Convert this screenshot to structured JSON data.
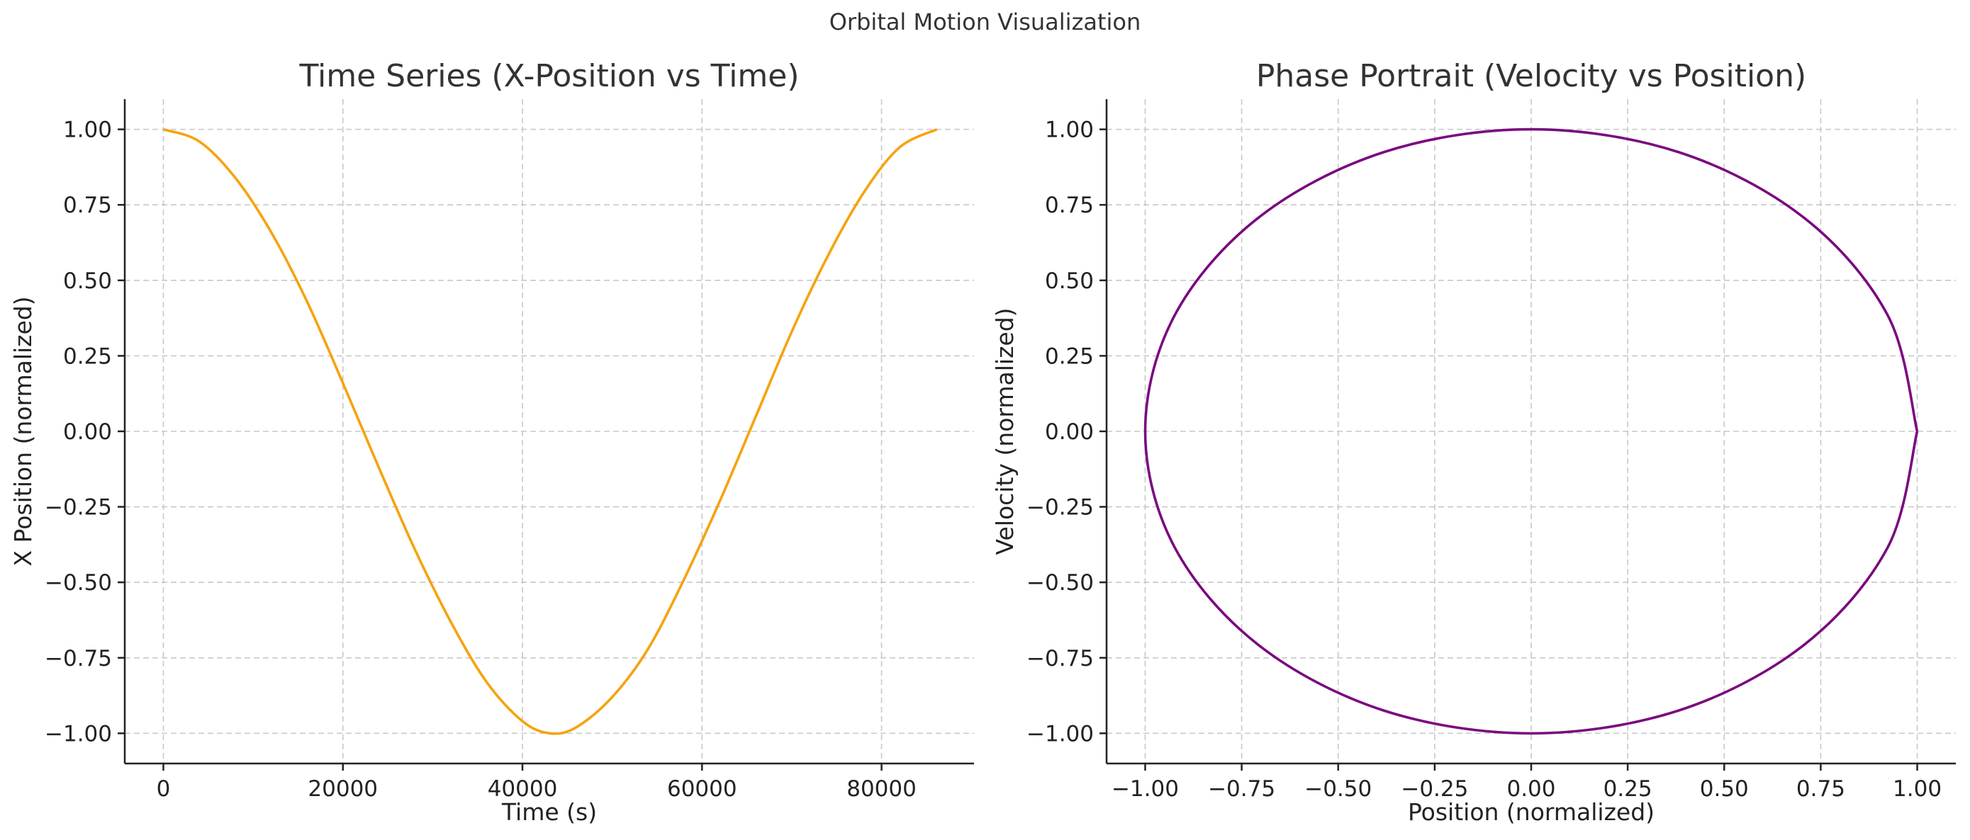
{
  "figure": {
    "suptitle": "Orbital Motion Visualization"
  },
  "chart_data": [
    {
      "type": "line",
      "title": "Time Series (X-Position vs Time)",
      "xlabel": "Time (s)",
      "ylabel": "X Position (normalized)",
      "xlim": [
        -4300,
        90300
      ],
      "ylim": [
        -1.1,
        1.1
      ],
      "xticks": [
        0,
        20000,
        40000,
        60000,
        80000
      ],
      "xtick_labels": [
        "0",
        "20000",
        "40000",
        "60000",
        "80000"
      ],
      "yticks": [
        1.0,
        0.75,
        0.5,
        0.25,
        0.0,
        -0.25,
        -0.5,
        -0.75,
        -1.0
      ],
      "ytick_labels": [
        "1.00",
        "0.75",
        "0.50",
        "0.25",
        "0.00",
        "−0.25",
        "−0.50",
        "−0.75",
        "−1.00"
      ],
      "grid": true,
      "series": [
        {
          "color": "#f5a30f",
          "x": [
            0,
            4000,
            8000,
            12000,
            16000,
            20000,
            24000,
            28000,
            32000,
            36000,
            40000,
            43080,
            46000,
            50000,
            54000,
            58000,
            62000,
            66000,
            70000,
            74000,
            78000,
            82000,
            86160
          ],
          "y": [
            1.0,
            0.96,
            0.84,
            0.66,
            0.43,
            0.16,
            -0.12,
            -0.39,
            -0.63,
            -0.83,
            -0.96,
            -1.0,
            -0.98,
            -0.88,
            -0.72,
            -0.49,
            -0.23,
            0.05,
            0.33,
            0.58,
            0.79,
            0.94,
            1.0
          ]
        }
      ]
    },
    {
      "type": "line",
      "title": "Phase Portrait (Velocity vs Position)",
      "xlabel": "Position (normalized)",
      "ylabel": "Velocity (normalized)",
      "xlim": [
        -1.1,
        1.1
      ],
      "ylim": [
        -1.1,
        1.1
      ],
      "xticks": [
        -1.0,
        -0.75,
        -0.5,
        -0.25,
        0.0,
        0.25,
        0.5,
        0.75,
        1.0
      ],
      "xtick_labels": [
        "−1.00",
        "−0.75",
        "−0.50",
        "−0.25",
        "0.00",
        "0.25",
        "0.50",
        "0.75",
        "1.00"
      ],
      "yticks": [
        1.0,
        0.75,
        0.5,
        0.25,
        0.0,
        -0.25,
        -0.5,
        -0.75,
        -1.0
      ],
      "ytick_labels": [
        "1.00",
        "0.75",
        "0.50",
        "0.25",
        "0.00",
        "−0.25",
        "−0.50",
        "−0.75",
        "−1.00"
      ],
      "grid": true,
      "series": [
        {
          "color": "#7a0a7e",
          "x": [
            1.0,
            0.924,
            0.707,
            0.383,
            0.0,
            -0.383,
            -0.707,
            -0.924,
            -1.0,
            -0.924,
            -0.707,
            -0.383,
            0.0,
            0.383,
            0.707,
            0.924,
            1.0
          ],
          "y": [
            0.0,
            0.383,
            0.707,
            0.924,
            1.0,
            0.924,
            0.707,
            0.383,
            0.0,
            -0.383,
            -0.707,
            -0.924,
            -1.0,
            -0.924,
            -0.707,
            -0.383,
            0.0
          ]
        }
      ]
    }
  ]
}
